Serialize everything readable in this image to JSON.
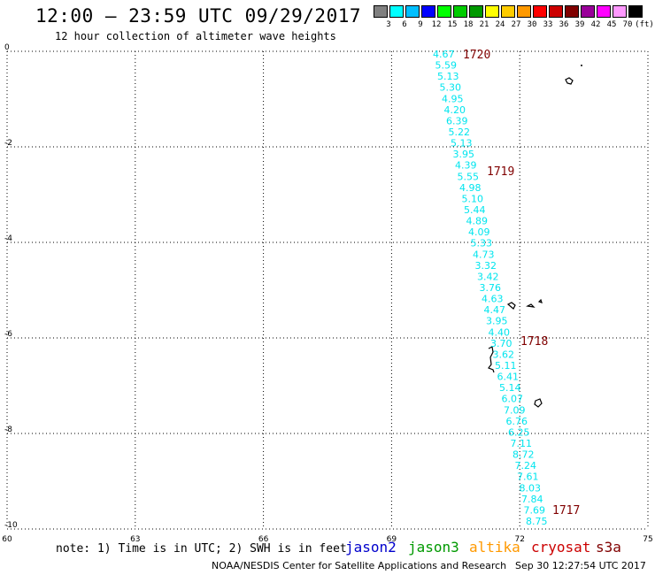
{
  "header": {
    "title": "12:00 – 23:59 UTC 09/29/2017",
    "subtitle": "12 hour collection of altimeter wave heights"
  },
  "color_scale": {
    "unit": "(ft)",
    "swatches": [
      "#808080",
      "#00ffff",
      "#00bfff",
      "#0000ff",
      "#00ff00",
      "#00cc00",
      "#009900",
      "#ffff00",
      "#ffcc00",
      "#ff9900",
      "#ff0000",
      "#cc0000",
      "#800000",
      "#990099",
      "#ff00ff",
      "#ff99ff",
      "#000000"
    ],
    "labels": [
      "3",
      "6",
      "9",
      "12",
      "15",
      "18",
      "21",
      "24",
      "27",
      "30",
      "33",
      "36",
      "39",
      "42",
      "45",
      "70"
    ]
  },
  "map": {
    "lon_ticks": [
      "60",
      "63",
      "66",
      "69",
      "72",
      "75"
    ],
    "lat_ticks": [
      "0",
      "-2",
      "-4",
      "-6",
      "-8",
      "-10"
    ],
    "lon_range": [
      60,
      75
    ],
    "lat_range": [
      -10,
      0
    ],
    "track_color": "#00e5ee",
    "wave_heights": [
      "4.67",
      "5.59",
      "5.13",
      "5.30",
      "4.95",
      "4.20",
      "6.39",
      "5.22",
      "5.13",
      "3.95",
      "4.39",
      "5.55",
      "4.98",
      "5.10",
      "5.44",
      "4.89",
      "4.09",
      "5.33",
      "4.73",
      "3.32",
      "3.42",
      "3.76",
      "4.63",
      "4.47",
      "3.95",
      "4.40",
      "3.70",
      "3.62",
      "5.11",
      "6.41",
      "5.14",
      "6.07",
      "7.09",
      "6.76",
      "6.25",
      "7.11",
      "8.72",
      "7.24",
      "7.61",
      "8.03",
      "7.84",
      "7.69",
      "8.75"
    ],
    "time_marks": [
      "1720",
      "1719",
      "1718",
      "1717"
    ]
  },
  "legend": {
    "note": "note: 1) Time is in UTC; 2) SWH is in feet",
    "missions": [
      {
        "name": "jason2",
        "color": "#0000cc"
      },
      {
        "name": "jason3",
        "color": "#009900"
      },
      {
        "name": "altika",
        "color": "#ff9900"
      },
      {
        "name": "cryosat",
        "color": "#cc0000"
      },
      {
        "name": "s3a",
        "color": "#800000"
      }
    ]
  },
  "footer": {
    "credit": "NOAA/NESDIS Center for Satellite Applications and Research",
    "timestamp": "Sep 30 12:27:54 UTC 2017"
  }
}
